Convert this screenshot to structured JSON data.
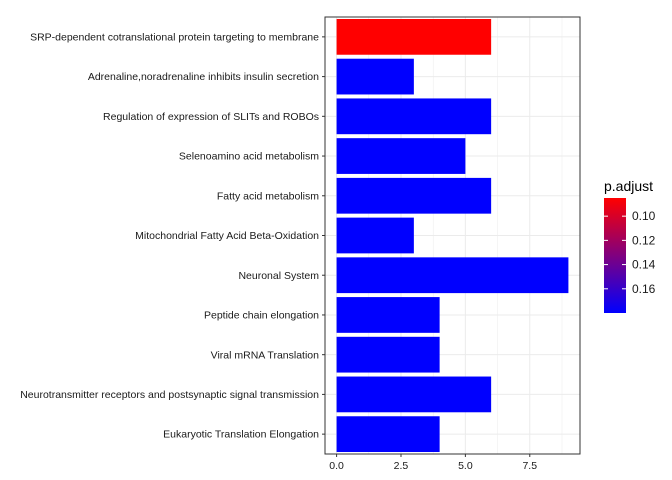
{
  "chart_data": {
    "type": "bar",
    "orientation": "horizontal",
    "categories": [
      "SRP-dependent cotranslational protein targeting to membrane",
      "Adrenaline,noradrenaline inhibits insulin secretion",
      "Regulation of expression of SLITs and ROBOs",
      "Selenoamino acid metabolism",
      "Fatty acid metabolism",
      "Mitochondrial Fatty Acid Beta-Oxidation",
      "Neuronal System",
      "Peptide chain elongation",
      "Viral mRNA Translation",
      "Neurotransmitter receptors and postsynaptic signal transmission",
      "Eukaryotic Translation Elongation"
    ],
    "values": [
      6,
      3,
      6,
      5,
      6,
      3,
      9,
      4,
      4,
      6,
      4
    ],
    "p_adjust": [
      0.085,
      0.18,
      0.18,
      0.18,
      0.18,
      0.18,
      0.18,
      0.18,
      0.18,
      0.18,
      0.18
    ],
    "xlim": [
      -0.45,
      9.45
    ],
    "x_ticks": [
      0,
      2.5,
      5,
      7.5
    ],
    "x_tick_labels": [
      "0.0",
      "2.5",
      "5.0",
      "7.5"
    ],
    "grid": true,
    "legend": {
      "title": "p.adjust",
      "position": "right",
      "scale": [
        0.085,
        0.18
      ],
      "ticks": [
        0.1,
        0.12,
        0.14,
        0.16
      ],
      "tick_labels": [
        "0.10",
        "0.12",
        "0.14",
        "0.16"
      ],
      "color_low": "#ff0000",
      "color_high": "#0000ff"
    },
    "colors": {
      "grid": "#ebebeb",
      "axis": "#333333",
      "panel_border": "#333333"
    }
  }
}
